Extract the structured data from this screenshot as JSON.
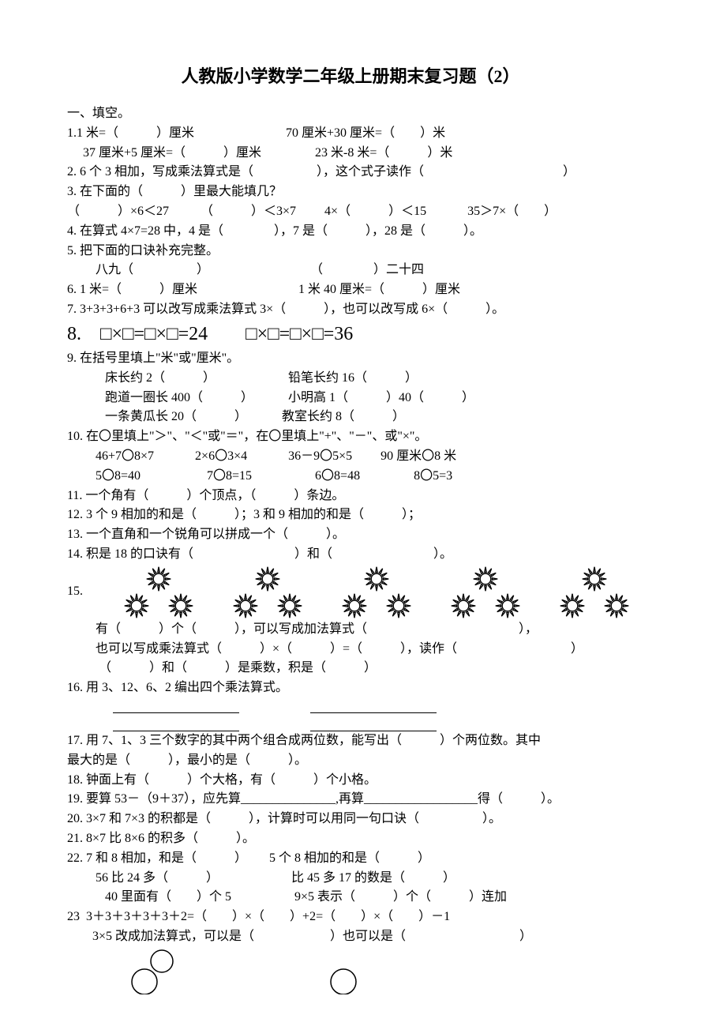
{
  "title": "人教版小学数学二年级上册期末复习题（2）",
  "sec1": "一、填空。",
  "q1a": "1.1 米=（　　　）厘米　　　　　　　 70 厘米+30 厘米=（　　）米",
  "q1b": "　 37 厘米+5 厘米=（　　　）厘米　　　　 23 米-8 米=（　　　）米",
  "q2": "2. 6 个 3 相加，写成乘法算式是（　　　　　），这个式子读作（　　　　　　　　　　　）",
  "q3a": "3. 在下面的（　　　）里最大能填几？",
  "q3b": "（　　　）×6＜27　　　（　　　）＜3×7　　 4×（　　　）＜15　　　 35＞7×（　　）",
  "q4": "4. 在算式 4×7=28 中，4 是（　　　　），7 是（　　　），28 是（　　　）。",
  "q5a": "5. 把下面的口诀补充完整。",
  "q5b": "　　 八九（　　　　　）　　　　　　　　　（　　　　）二十四",
  "q6": "6. 1 米=（　　　）厘米　　　　　　　　1 米 40 厘米=（　　　）厘米",
  "q7": "7. 3+3+3+6+3 可以改写成乘法算式 3×（　　　），也可以改写成 6×（　　　）。",
  "q8": "8.　□×□=□×□=24　　□×□=□×□=36",
  "q9a": "9. 在括号里填上\"米\"或\"厘米\"。",
  "q9b": "　　　床长约 2（　　　）　　　　　　 铅笔长约 16（　　　）",
  "q9c": "　　　跑道一圈长 400（　　　）　　　 小明高 1（　　　）40（　　　）",
  "q9d": "　　　一条黄瓜长 20（　　　）　　　 教室长约 8（　　　）",
  "q10a": "10. 在〇里填上\"＞\"、\"＜\"或\"＝\"，在〇里填上\"+\"、\"－\"、或\"×\"。",
  "q10b": "　　 46+7〇8×7　　　 2×6〇3×4　　　 36－9〇5×5　　 90 厘米〇8 米",
  "q10c": "　　 5〇8=40　　　　　 7〇8=15　　　　　6〇8=48　　　　 8〇5=3",
  "q11": "11. 一个角有（　　　）个顶点，（　　　）条边。",
  "q12": "12. 3 个 9 相加的和是（　　　）；3 和 9 相加的和是（　　　）；",
  "q13": "13. 一个直角和一个锐角可以拼成一个（　　　）。",
  "q14": "14. 积是 18 的口诀有（　　　　　　　　）和（　　　　　　　　）。",
  "q15": "15.",
  "q15a": "　　 有（　　　）个（　　　），可以写成加法算式（　　　　　　　　　　　　），",
  "q15b": "　　 也可以写成乘法算式（　　　）×（　　　）=（　　　），读作（　　　　　　　　　）",
  "q15c": "　　　（　　　）和（　　　）是乘数，积是（　　　）",
  "q16": "16. 用 3、12、6、2 编出四个乘法算式。",
  "q17a": "17. 用 7、1、3 三个数字的其中两个组合成两位数，能写出（　　　）个两位数。其中",
  "q17b": "最大的是（　　　），最小的是（　　　）。",
  "q18": "18. 钟面上有（　　　）个大格，有（　　　）个小格。",
  "q19": "19. 要算 53－（9＋37），应先算_______________,再算__________________得（　　　）。",
  "q20": "20. 3×7 和 7×3 的积都是（　　　），计算时可以用同一句口诀（　　　　　）。",
  "q21": "21. 8×7 比 8×6 的积多（　　　）。",
  "q22a": "22. 7 和 8 相加，和是（　　　）　　 5 个 8 相加的和是（　　　）",
  "q22b": "　　 56 比 24 多（　　　）　　　　　　 比 45 多 17 的数是（　　　）",
  "q22c": "　　　40 里面有（　　）个 5　　　　　9×5 表示（　　　）个（　　　）连加",
  "q23a": "23  3＋3＋3＋3＋3＋2=（　　）×（　　）+2=（　　）×（　　）－1",
  "q23b": "　　3×5 改成加法算式，可以是（　　　　　　）也可以是（　　　　　　　　　）",
  "style": {
    "font_family": "SimSun",
    "text_color": "#000000",
    "bg_color": "#ffffff",
    "title_fontsize": 22,
    "body_fontsize": 16,
    "eq_fontsize": 24,
    "sun_color": "#000000",
    "sun_groups": 5,
    "suns_per_group": 3,
    "circle_count": 3
  }
}
